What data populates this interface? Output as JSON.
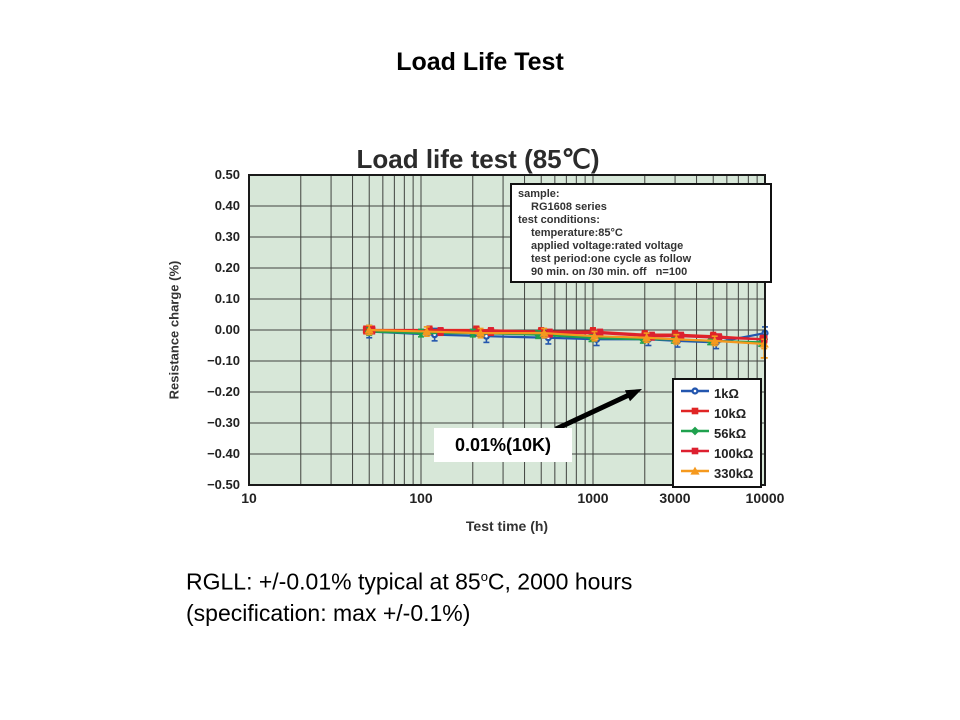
{
  "page": {
    "title": "Load Life Test",
    "caption": {
      "line1_pre": "RGLL: +/-0.01% typical at 85",
      "line1_sup": "o",
      "line1_post": "C, 2000 hours",
      "line2": "(specification: max +/-0.1%)"
    }
  },
  "info_box": {
    "lines": [
      {
        "text": "sample:",
        "indent": false
      },
      {
        "text": "RG1608 series",
        "indent": true
      },
      {
        "text": "test conditions:",
        "indent": false
      },
      {
        "text": "temperature:85°C",
        "indent": true
      },
      {
        "text": "applied voltage:rated voltage",
        "indent": true
      },
      {
        "text": "test period:one cycle as follow",
        "indent": true
      },
      {
        "text": "90 min. on /30 min. off   n=100",
        "indent": true
      }
    ]
  },
  "annotation": {
    "label": "0.01%(10K)"
  },
  "chart_data": {
    "type": "line",
    "title": "Load life test (85℃)",
    "xlabel": "Test time (h)",
    "ylabel": "Resistance charge (%)",
    "x_scale": "log",
    "xlim": [
      10,
      10000
    ],
    "ylim": [
      -0.5,
      0.5
    ],
    "x_ticks": [
      "10",
      "100",
      "1000",
      "3000",
      "10000"
    ],
    "y_ticks": [
      "0.50",
      "0.40",
      "0.30",
      "0.20",
      "0.10",
      "0.00",
      "−0.10",
      "−0.20",
      "−0.30",
      "−0.40",
      "−0.50"
    ],
    "grid": true,
    "plot_bg": "#d7e7d8",
    "grid_color": "#40433f",
    "legend_position": "bottom-right",
    "series": [
      {
        "name": "1kΩ",
        "color": "#2356ae",
        "marker": "circle",
        "err": 0.02,
        "x": [
          50,
          120,
          240,
          550,
          1050,
          2100,
          3100,
          5200,
          10000
        ],
        "values": [
          -0.005,
          -0.015,
          -0.02,
          -0.025,
          -0.03,
          -0.03,
          -0.035,
          -0.04,
          -0.01
        ]
      },
      {
        "name": "10kΩ",
        "color": "#e02525",
        "marker": "square",
        "err": 0.012,
        "x": [
          48,
          112,
          210,
          500,
          1000,
          2000,
          3000,
          5000,
          9700
        ],
        "values": [
          0.0,
          0.0,
          0.0,
          -0.005,
          -0.005,
          -0.015,
          -0.015,
          -0.02,
          -0.03
        ]
      },
      {
        "name": "56kΩ",
        "color": "#1fa14e",
        "marker": "diamond",
        "err": 0.012,
        "x": [
          50,
          100,
          200,
          480,
          980,
          1950,
          2950,
          4800,
          9500
        ],
        "values": [
          -0.005,
          -0.01,
          -0.01,
          -0.015,
          -0.025,
          -0.03,
          -0.03,
          -0.035,
          -0.04
        ]
      },
      {
        "name": "100kΩ",
        "color": "#dd2030",
        "marker": "square",
        "err": 0.012,
        "x": [
          52,
          130,
          255,
          560,
          1100,
          2200,
          3250,
          5400,
          9900
        ],
        "values": [
          0.0,
          -0.005,
          -0.005,
          -0.01,
          -0.01,
          -0.02,
          -0.02,
          -0.025,
          -0.03
        ]
      },
      {
        "name": "330kΩ",
        "color": "#f5991e",
        "marker": "triangle",
        "err": 0.015,
        "err_last_low": 0.045,
        "x": [
          50,
          108,
          222,
          520,
          1020,
          2050,
          3050,
          5100,
          9900
        ],
        "values": [
          0.0,
          -0.005,
          -0.01,
          -0.01,
          -0.02,
          -0.025,
          -0.03,
          -0.035,
          -0.045
        ]
      }
    ]
  }
}
